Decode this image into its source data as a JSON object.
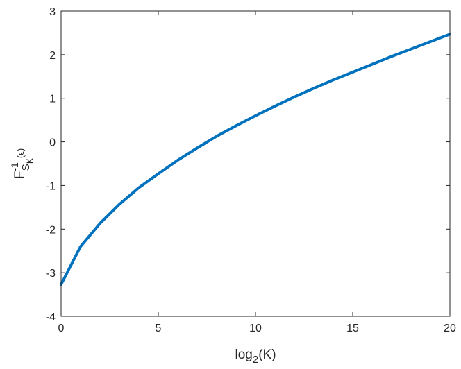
{
  "chart_data": {
    "type": "line",
    "xlabel": {
      "prefix": "log",
      "subscript": "2",
      "suffix": "(K)"
    },
    "ylabel": {
      "base": "F",
      "superscript": "-1",
      "subscript": "S",
      "sub_subscript": "K",
      "argument": "(ϵ)"
    },
    "xlim": [
      0,
      20
    ],
    "ylim": [
      -4,
      3
    ],
    "x_ticks": [
      0,
      5,
      10,
      15,
      20
    ],
    "y_ticks": [
      -4,
      -3,
      -2,
      -1,
      0,
      1,
      2,
      3
    ],
    "x_tick_labels": [
      "0",
      "5",
      "10",
      "15",
      "20"
    ],
    "y_tick_labels": [
      "-4",
      "-3",
      "-2",
      "-1",
      "0",
      "1",
      "2",
      "3"
    ],
    "grid": false,
    "line_color": "#0072BD",
    "series": [
      {
        "x": [
          0,
          1,
          2,
          3,
          4,
          5,
          6,
          7,
          8,
          9,
          10,
          11,
          12,
          13,
          14,
          15,
          16,
          17,
          18,
          19,
          20
        ],
        "y": [
          -3.27,
          -2.4,
          -1.87,
          -1.43,
          -1.05,
          -0.73,
          -0.42,
          -0.14,
          0.13,
          0.37,
          0.6,
          0.82,
          1.03,
          1.23,
          1.42,
          1.6,
          1.78,
          1.96,
          2.13,
          2.3,
          2.47
        ]
      }
    ]
  }
}
